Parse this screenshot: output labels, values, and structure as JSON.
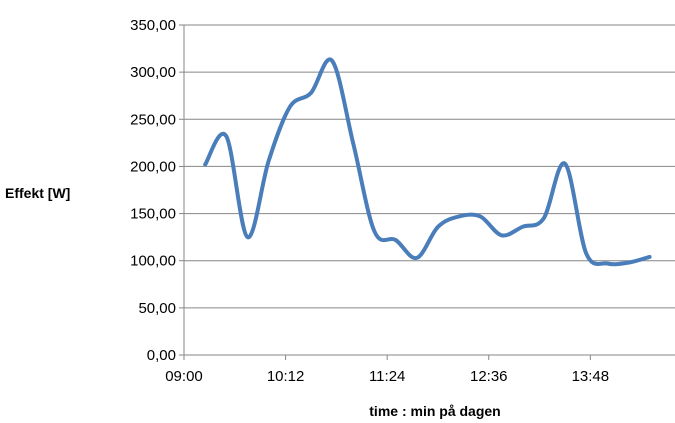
{
  "chart_data": {
    "type": "line",
    "title": "",
    "xlabel": "time : min på dagen",
    "ylabel": "Effekt [W]",
    "x_ticks": [
      "09:00",
      "10:12",
      "11:24",
      "12:36",
      "13:48"
    ],
    "x_tick_minutes": [
      540,
      612,
      684,
      756,
      828
    ],
    "y_ticks": [
      "0,00",
      "50,00",
      "100,00",
      "150,00",
      "200,00",
      "250,00",
      "300,00",
      "350,00"
    ],
    "xlim": [
      "09:00",
      "14:48"
    ],
    "ylim": [
      0,
      350
    ],
    "grid": "horizontal",
    "legend": "none",
    "line_color": "#4a7ebb",
    "series": [
      {
        "x": [
          "09:15",
          "09:30",
          "09:45",
          "10:00",
          "10:15",
          "10:30",
          "10:45",
          "11:00",
          "11:15",
          "11:30",
          "11:45",
          "12:00",
          "12:15",
          "12:30",
          "12:45",
          "13:00",
          "13:15",
          "13:30",
          "13:45",
          "14:00",
          "14:15",
          "14:30"
        ],
        "values": [
          202,
          232,
          125,
          206,
          263,
          278,
          312,
          224,
          131,
          122,
          103,
          136,
          147,
          147,
          127,
          136,
          145,
          203,
          108,
          97,
          98,
          104
        ]
      }
    ]
  }
}
